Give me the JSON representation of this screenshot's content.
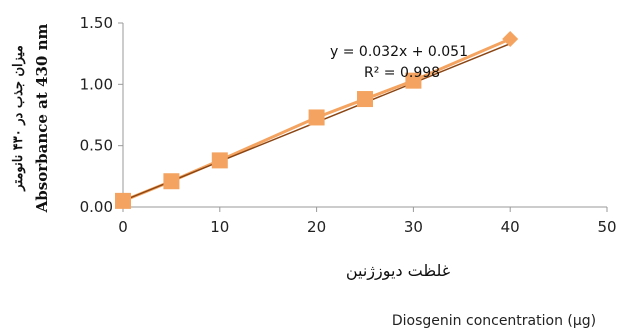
{
  "chart_data": {
    "type": "scatter",
    "x": [
      0,
      5,
      10,
      20,
      25,
      30,
      40
    ],
    "y": [
      0.05,
      0.21,
      0.38,
      0.73,
      0.88,
      1.03,
      1.37
    ],
    "xlim": [
      0,
      50
    ],
    "ylim": [
      0,
      1.5
    ],
    "x_ticks": [
      0,
      10,
      20,
      30,
      40,
      50
    ],
    "y_ticks": [
      "0.00",
      "0.50",
      "1.00",
      "1.50"
    ],
    "trendline": {
      "type": "linear",
      "slope": 0.032,
      "intercept": 0.051,
      "r2": 0.998
    },
    "equation_label": "y = 0.032x + 0.051",
    "r2_label": "R² = 0.998",
    "ylabel_en": "Absorbance at 430 nm",
    "ylabel_fa": "میزان جذب در ۴۳۰ نانومتر",
    "xlabel_fa": "غلظت دیوزژنین",
    "xlabel_en": "Diosgenin concentration (µg)",
    "grid": false,
    "marker_color": "#F4A460",
    "line_color": "#8B4513"
  }
}
